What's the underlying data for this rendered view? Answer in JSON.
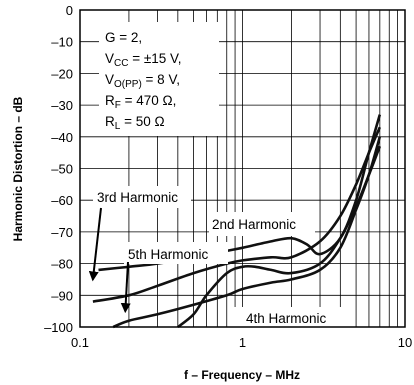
{
  "chart_data": {
    "type": "line",
    "xlabel": "f – Frequency – MHz",
    "ylabel": "Harmonic Distortion – dB",
    "x_scale": "log",
    "xlim": [
      0.1,
      10
    ],
    "ylim": [
      -100,
      0
    ],
    "grid": true,
    "x_tick_labels": [
      "0.1",
      "1",
      "10"
    ],
    "y_tick_labels": [
      "0",
      "–10",
      "–20",
      "–30",
      "–40",
      "–50",
      "–60",
      "–70",
      "–80",
      "–90",
      "–100"
    ],
    "conditions": {
      "gain": "G = 2,",
      "vcc": {
        "main": "V",
        "sub": "CC",
        "rest": " = ±15 V,"
      },
      "vo": {
        "main": "V",
        "sub": "O(PP)",
        "rest": " = 8 V,"
      },
      "rf": {
        "main": "R",
        "sub": "F",
        "rest": " = 470 Ω,"
      },
      "rl": {
        "main": "R",
        "sub": "L",
        "rest": " = 50 Ω"
      }
    },
    "series": [
      {
        "name": "3rd Harmonic",
        "x": [
          0.12,
          0.2,
          0.3,
          0.5,
          0.8,
          1,
          1.5,
          2,
          3,
          4,
          5,
          6,
          7
        ],
        "y": [
          -92,
          -90,
          -87,
          -83,
          -80,
          -79,
          -78,
          -78,
          -73,
          -65,
          -55,
          -45,
          -37
        ]
      },
      {
        "name": "2nd Harmonic",
        "x": [
          0.13,
          0.2,
          0.3,
          0.5,
          0.8,
          1,
          1.5,
          2,
          2.5,
          3,
          4,
          5,
          6,
          7
        ],
        "y": [
          -82,
          -81,
          -80,
          -78,
          -76,
          -75,
          -73,
          -72,
          -74,
          -77,
          -72,
          -60,
          -45,
          -33
        ]
      },
      {
        "name": "5th Harmonic",
        "x": [
          0.4,
          0.5,
          0.6,
          0.8,
          1,
          1.2,
          1.5,
          2,
          3,
          4,
          5,
          6,
          7
        ],
        "y": [
          -100,
          -96,
          -90,
          -83,
          -81,
          -81,
          -82,
          -83,
          -80,
          -72,
          -62,
          -52,
          -43
        ]
      },
      {
        "name": "4th Harmonic",
        "x": [
          0.16,
          0.2,
          0.3,
          0.5,
          0.8,
          1,
          1.5,
          2,
          3,
          4,
          5,
          6,
          7
        ],
        "y": [
          -100,
          -98,
          -96,
          -93,
          -90,
          -88,
          -86,
          -85,
          -82,
          -75,
          -63,
          -52,
          -40
        ]
      }
    ],
    "annotations": [
      {
        "text": "3rd Harmonic",
        "arrow_to": [
          0.12,
          -85
        ]
      },
      {
        "text": "2nd Harmonic"
      },
      {
        "text": "5th Harmonic",
        "arrow_to": [
          0.19,
          -95
        ]
      },
      {
        "text": "4th Harmonic"
      }
    ]
  }
}
